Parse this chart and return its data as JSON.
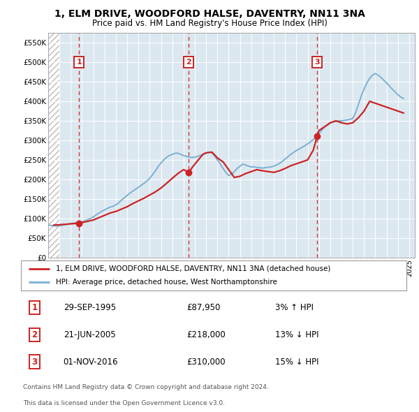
{
  "title": "1, ELM DRIVE, WOODFORD HALSE, DAVENTRY, NN11 3NA",
  "subtitle": "Price paid vs. HM Land Registry's House Price Index (HPI)",
  "xlim": [
    1993.0,
    2025.5
  ],
  "ylim": [
    0,
    575000
  ],
  "yticks": [
    0,
    50000,
    100000,
    150000,
    200000,
    250000,
    300000,
    350000,
    400000,
    450000,
    500000,
    550000
  ],
  "ytick_labels": [
    "£0",
    "£50K",
    "£100K",
    "£150K",
    "£200K",
    "£250K",
    "£300K",
    "£350K",
    "£400K",
    "£450K",
    "£500K",
    "£550K"
  ],
  "xticks": [
    1993,
    1994,
    1995,
    1996,
    1997,
    1998,
    1999,
    2000,
    2001,
    2002,
    2003,
    2004,
    2005,
    2006,
    2007,
    2008,
    2009,
    2010,
    2011,
    2012,
    2013,
    2014,
    2015,
    2016,
    2017,
    2018,
    2019,
    2020,
    2021,
    2022,
    2023,
    2024,
    2025
  ],
  "hpi_color": "#7ab0d4",
  "price_color": "#cc2222",
  "sale_marker_color": "#cc2222",
  "dashed_line_color": "#cc2222",
  "grid_color": "#ffffff",
  "chart_bg": "#dce8f0",
  "sales": [
    {
      "num": 1,
      "year": 1995.75,
      "price": 87950,
      "label": "1"
    },
    {
      "num": 2,
      "year": 2005.47,
      "price": 218000,
      "label": "2"
    },
    {
      "num": 3,
      "year": 2016.84,
      "price": 310000,
      "label": "3"
    }
  ],
  "table_rows": [
    {
      "num": "1",
      "date": "29-SEP-1995",
      "price": "£87,950",
      "hpi": "3% ↑ HPI"
    },
    {
      "num": "2",
      "date": "21-JUN-2005",
      "price": "£218,000",
      "hpi": "13% ↓ HPI"
    },
    {
      "num": "3",
      "date": "01-NOV-2016",
      "price": "£310,000",
      "hpi": "15% ↓ HPI"
    }
  ],
  "legend_entries": [
    "1, ELM DRIVE, WOODFORD HALSE, DAVENTRY, NN11 3NA (detached house)",
    "HPI: Average price, detached house, West Northamptonshire"
  ],
  "footer": [
    "Contains HM Land Registry data © Crown copyright and database right 2024.",
    "This data is licensed under the Open Government Licence v3.0."
  ],
  "hpi_data_x": [
    1993.0,
    1993.25,
    1993.5,
    1993.75,
    1994.0,
    1994.25,
    1994.5,
    1994.75,
    1995.0,
    1995.25,
    1995.5,
    1995.75,
    1996.0,
    1996.25,
    1996.5,
    1996.75,
    1997.0,
    1997.25,
    1997.5,
    1997.75,
    1998.0,
    1998.25,
    1998.5,
    1998.75,
    1999.0,
    1999.25,
    1999.5,
    1999.75,
    2000.0,
    2000.25,
    2000.5,
    2000.75,
    2001.0,
    2001.25,
    2001.5,
    2001.75,
    2002.0,
    2002.25,
    2002.5,
    2002.75,
    2003.0,
    2003.25,
    2003.5,
    2003.75,
    2004.0,
    2004.25,
    2004.5,
    2004.75,
    2005.0,
    2005.25,
    2005.5,
    2005.75,
    2006.0,
    2006.25,
    2006.5,
    2006.75,
    2007.0,
    2007.25,
    2007.5,
    2007.75,
    2008.0,
    2008.25,
    2008.5,
    2008.75,
    2009.0,
    2009.25,
    2009.5,
    2009.75,
    2010.0,
    2010.25,
    2010.5,
    2010.75,
    2011.0,
    2011.25,
    2011.5,
    2011.75,
    2012.0,
    2012.25,
    2012.5,
    2012.75,
    2013.0,
    2013.25,
    2013.5,
    2013.75,
    2014.0,
    2014.25,
    2014.5,
    2014.75,
    2015.0,
    2015.25,
    2015.5,
    2015.75,
    2016.0,
    2016.25,
    2016.5,
    2016.75,
    2017.0,
    2017.25,
    2017.5,
    2017.75,
    2018.0,
    2018.25,
    2018.5,
    2018.75,
    2019.0,
    2019.25,
    2019.5,
    2019.75,
    2020.0,
    2020.25,
    2020.5,
    2020.75,
    2021.0,
    2021.25,
    2021.5,
    2021.75,
    2022.0,
    2022.25,
    2022.5,
    2022.75,
    2023.0,
    2023.25,
    2023.5,
    2023.75,
    2024.0,
    2024.25,
    2024.5
  ],
  "hpi_data_y": [
    83000,
    82000,
    81000,
    80500,
    81000,
    82500,
    84000,
    85500,
    87000,
    88000,
    89000,
    90000,
    91500,
    94000,
    97000,
    100000,
    104000,
    109000,
    114000,
    118000,
    122000,
    126000,
    129000,
    131000,
    135000,
    140000,
    147000,
    153000,
    159000,
    165000,
    170000,
    175000,
    180000,
    185000,
    190000,
    196000,
    203000,
    212000,
    222000,
    233000,
    242000,
    250000,
    257000,
    261000,
    264000,
    267000,
    267000,
    264000,
    261000,
    259000,
    257000,
    256000,
    257000,
    259000,
    262000,
    264000,
    267000,
    270000,
    268000,
    260000,
    250000,
    240000,
    228000,
    218000,
    210000,
    213000,
    220000,
    228000,
    234000,
    239000,
    237000,
    234000,
    232000,
    232000,
    231000,
    230000,
    229000,
    230000,
    231000,
    232000,
    234000,
    237000,
    241000,
    246000,
    252000,
    258000,
    264000,
    269000,
    274000,
    278000,
    282000,
    286000,
    291000,
    296000,
    302000,
    309000,
    317000,
    326000,
    334000,
    339000,
    344000,
    347000,
    349000,
    350000,
    350000,
    351000,
    352000,
    354000,
    356000,
    371000,
    392000,
    414000,
    431000,
    447000,
    459000,
    467000,
    471000,
    467000,
    461000,
    454000,
    447000,
    439000,
    431000,
    424000,
    417000,
    411000,
    407000
  ],
  "price_line_x": [
    1993.5,
    1994.5,
    1995.75,
    1996.25,
    1997.0,
    1997.5,
    1998.0,
    1998.5,
    1999.0,
    1999.5,
    2000.0,
    2000.5,
    2001.0,
    2001.5,
    2002.0,
    2002.5,
    2003.0,
    2003.5,
    2004.0,
    2004.5,
    2005.0,
    2005.47,
    2005.75,
    2006.25,
    2006.75,
    2007.0,
    2007.5,
    2007.75,
    2008.0,
    2008.5,
    2009.0,
    2009.5,
    2010.0,
    2010.5,
    2011.0,
    2011.5,
    2012.0,
    2012.5,
    2013.0,
    2013.5,
    2014.0,
    2014.5,
    2015.0,
    2015.5,
    2016.0,
    2016.5,
    2016.84,
    2017.0,
    2017.5,
    2018.0,
    2018.5,
    2019.0,
    2019.5,
    2020.0,
    2020.5,
    2021.0,
    2021.5,
    2022.0,
    2022.5,
    2023.0,
    2023.5,
    2024.0,
    2024.5
  ],
  "price_line_y": [
    83000,
    85000,
    87950,
    91000,
    96000,
    102000,
    108000,
    114000,
    118000,
    124000,
    130000,
    138000,
    145000,
    152000,
    160000,
    168000,
    178000,
    190000,
    203000,
    215000,
    225000,
    218000,
    230000,
    248000,
    265000,
    268000,
    270000,
    263000,
    255000,
    245000,
    225000,
    205000,
    208000,
    215000,
    220000,
    225000,
    222000,
    220000,
    218000,
    222000,
    228000,
    235000,
    240000,
    245000,
    250000,
    275000,
    310000,
    325000,
    335000,
    345000,
    350000,
    345000,
    342000,
    345000,
    358000,
    375000,
    400000,
    395000,
    390000,
    385000,
    380000,
    375000,
    370000
  ]
}
